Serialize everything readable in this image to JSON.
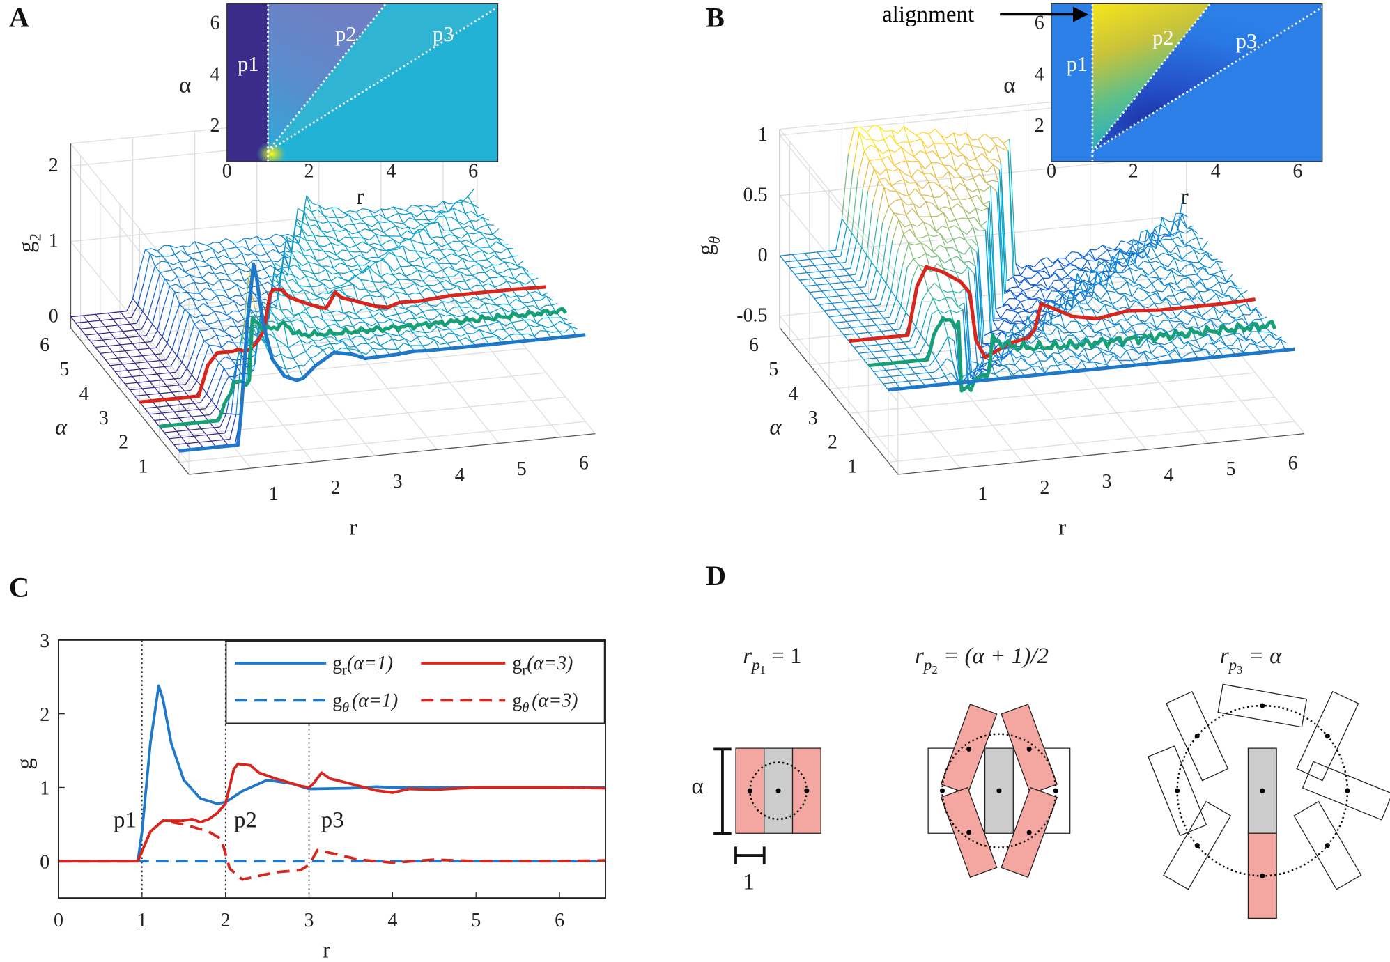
{
  "panels": {
    "a": "A",
    "b": "B",
    "c": "C",
    "d": "D"
  },
  "chart_data": [
    {
      "type": "surface",
      "panel": "A",
      "xlabel": "r",
      "ylabel": "α",
      "zlabel": "g",
      "zlabel_sub": "2",
      "xticks": [
        1,
        2,
        3,
        4,
        5,
        6
      ],
      "yticks": [
        1,
        2,
        3,
        4,
        5,
        6
      ],
      "zticks": [
        0,
        1,
        2
      ],
      "xlim": [
        0,
        6.55
      ],
      "ylim": [
        0.5,
        6.5
      ],
      "zlim": [
        -0.15,
        2.3
      ],
      "colormap": "parula",
      "highlighted_curves": [
        {
          "alpha": 1,
          "color": "#1f78c8"
        },
        {
          "alpha": 2,
          "color": "#17a078"
        },
        {
          "alpha": 3,
          "color": "#d7261e"
        }
      ],
      "inset": {
        "type": "heatmap",
        "xlabel": "r",
        "ylabel": "α",
        "xticks": [
          0,
          2,
          4,
          6
        ],
        "yticks": [
          2,
          4,
          6
        ],
        "xlim": [
          0,
          6.6
        ],
        "ylim": [
          0.6,
          6.75
        ],
        "regions": [
          "p1",
          "p2",
          "p3"
        ],
        "boundaries": [
          "r = 1",
          "r = (α+1)/2",
          "r = α"
        ]
      }
    },
    {
      "type": "surface",
      "panel": "B",
      "xlabel": "r",
      "ylabel": "α",
      "zlabel": "g",
      "zlabel_sub": "θ",
      "xticks": [
        1,
        2,
        3,
        4,
        5,
        6
      ],
      "yticks": [
        1,
        2,
        3,
        4,
        5,
        6
      ],
      "zticks": [
        -0.5,
        0,
        0.5,
        1
      ],
      "xlim": [
        0,
        6.55
      ],
      "ylim": [
        0.5,
        6.5
      ],
      "zlim": [
        -0.6,
        1.05
      ],
      "colormap": "parula",
      "highlighted_curves": [
        {
          "alpha": 1,
          "color": "#1f78c8"
        },
        {
          "alpha": 2,
          "color": "#17a078"
        },
        {
          "alpha": 3,
          "color": "#d7261e"
        }
      ],
      "inset": {
        "type": "heatmap",
        "xlabel": "r",
        "ylabel": "α",
        "xticks": [
          0,
          2,
          4,
          6
        ],
        "yticks": [
          2,
          4,
          6
        ],
        "xlim": [
          0,
          6.6
        ],
        "ylim": [
          0.6,
          6.75
        ],
        "regions": [
          "p1",
          "p2",
          "p3"
        ],
        "boundaries": [
          "r = 1",
          "r = (α+1)/2",
          "r = α"
        ],
        "annotation": "alignment"
      }
    },
    {
      "type": "line",
      "panel": "C",
      "xlabel": "r",
      "ylabel": "g",
      "xlim": [
        0,
        6.55
      ],
      "ylim": [
        -0.5,
        3
      ],
      "xticks": [
        0,
        1,
        2,
        3,
        4,
        5,
        6
      ],
      "yticks": [
        0,
        1,
        2,
        3
      ],
      "legend_position": "top-right",
      "vlines": [
        1,
        2,
        3
      ],
      "annotations": [
        {
          "text": "p1",
          "x": 1
        },
        {
          "text": "p2",
          "x": 2
        },
        {
          "text": "p3",
          "x": 3
        }
      ],
      "series": [
        {
          "name": "gr(α=1)",
          "base": "g",
          "sub": "r",
          "cond": "(α=1)",
          "color": "#1f78c8",
          "dash": "solid",
          "x": [
            0,
            0.95,
            1.0,
            1.1,
            1.2,
            1.25,
            1.35,
            1.5,
            1.7,
            1.9,
            2.0,
            2.2,
            2.5,
            2.8,
            3.0,
            3.5,
            3.8,
            4.0,
            4.5,
            5.0,
            5.5,
            6.0,
            6.55
          ],
          "y": [
            0,
            0,
            0.4,
            1.6,
            2.38,
            2.2,
            1.6,
            1.1,
            0.85,
            0.78,
            0.8,
            0.95,
            1.1,
            1.05,
            0.98,
            0.99,
            1.01,
            1.0,
            1.0,
            1.0,
            1.0,
            1.0,
            1.0
          ]
        },
        {
          "name": "gr(α=3)",
          "base": "g",
          "sub": "r",
          "cond": "(α=3)",
          "color": "#d7261e",
          "dash": "solid",
          "x": [
            0,
            0.95,
            1.1,
            1.25,
            1.5,
            1.6,
            1.7,
            1.8,
            1.9,
            2.0,
            2.1,
            2.15,
            2.3,
            2.4,
            2.6,
            2.9,
            3.0,
            3.05,
            3.15,
            3.25,
            3.5,
            3.8,
            4.0,
            4.2,
            4.5,
            5.0,
            5.5,
            6.0,
            6.55
          ],
          "y": [
            0,
            0,
            0.4,
            0.55,
            0.55,
            0.57,
            0.53,
            0.57,
            0.65,
            0.78,
            1.25,
            1.32,
            1.3,
            1.2,
            1.12,
            1.02,
            1.0,
            1.05,
            1.2,
            1.12,
            1.05,
            0.96,
            0.93,
            0.98,
            0.97,
            1.0,
            1.0,
            1.0,
            0.99
          ]
        },
        {
          "name": "gθ(α=1)",
          "base": "g",
          "sub": "θ",
          "cond": "(α=1)",
          "color": "#1f78c8",
          "dash": "dashed",
          "x": [
            0,
            1.0,
            2.0,
            3.0,
            4.0,
            5.0,
            6.0,
            6.55
          ],
          "y": [
            0,
            0,
            0,
            0,
            0,
            0,
            0,
            0
          ]
        },
        {
          "name": "gθ(α=3)",
          "base": "g",
          "sub": "θ",
          "cond": "(α=3)",
          "color": "#d7261e",
          "dash": "dashed",
          "x": [
            0,
            0.95,
            1.1,
            1.25,
            1.5,
            1.8,
            1.95,
            2.05,
            2.2,
            2.4,
            2.6,
            2.9,
            3.0,
            3.1,
            3.3,
            3.6,
            4.0,
            4.5,
            5.0,
            5.5,
            6.0,
            6.55
          ],
          "y": [
            0,
            0,
            0.4,
            0.55,
            0.5,
            0.4,
            0.3,
            -0.1,
            -0.25,
            -0.2,
            -0.15,
            -0.12,
            -0.05,
            0.15,
            0.1,
            0.02,
            -0.02,
            0.02,
            0,
            0,
            0,
            0.01
          ]
        }
      ]
    }
  ],
  "panel_d": {
    "titles": [
      {
        "lhs": "r",
        "sub": "p",
        "subsub": "1",
        "rhs": " = 1"
      },
      {
        "lhs": "r",
        "sub": "p",
        "subsub": "2",
        "rhs": " = (α + 1)/2"
      },
      {
        "lhs": "r",
        "sub": "p",
        "subsub": "3",
        "rhs": " = α"
      }
    ],
    "length_label": "α",
    "width_label": "1",
    "colors": {
      "neighbor": "#f4a6a0",
      "reference": "#cccccc"
    }
  }
}
